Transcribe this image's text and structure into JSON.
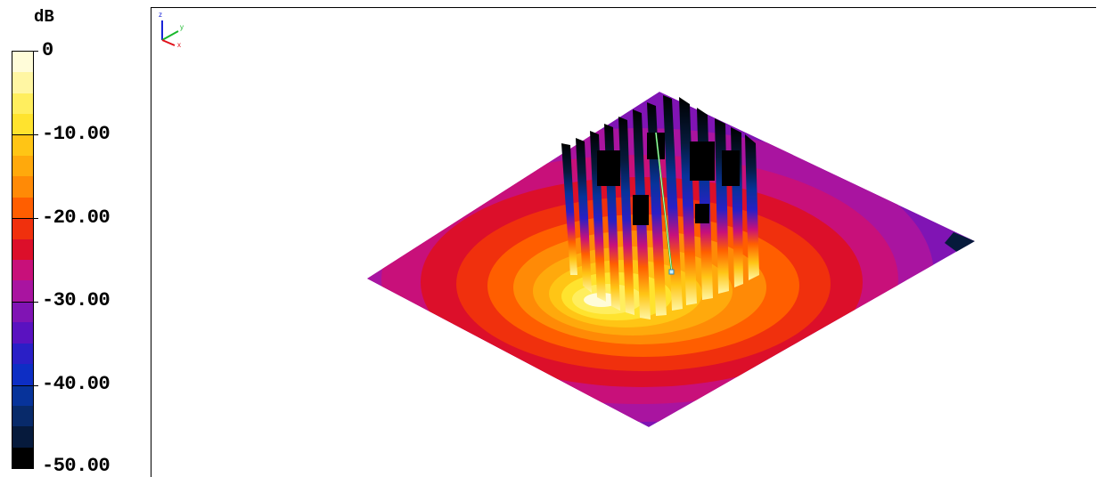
{
  "legend": {
    "unit": "dB",
    "ticks": [
      "0",
      "-10.00",
      "-20.00",
      "-30.00",
      "-40.00",
      "-50.00"
    ],
    "min": -50,
    "max": 0,
    "bands": [
      "#fffcd9",
      "#fff6a3",
      "#ffee5e",
      "#ffe32e",
      "#ffc515",
      "#ffa90c",
      "#ff8a06",
      "#ff5e00",
      "#f0300d",
      "#dc0f2a",
      "#c8107a",
      "#a914a0",
      "#8014b4",
      "#5a12c0",
      "#2a1fc6",
      "#0d2ec4",
      "#07339a",
      "#082a6a",
      "#061a3c",
      "#000000"
    ]
  },
  "viewport": {
    "name": "3D radiation pattern view"
  },
  "axis_triad": {
    "x_label": "x",
    "y_label": "y",
    "z_label": "z",
    "x_color": "#e0101a",
    "y_color": "#19b82c",
    "z_color": "#1a24d8"
  }
}
